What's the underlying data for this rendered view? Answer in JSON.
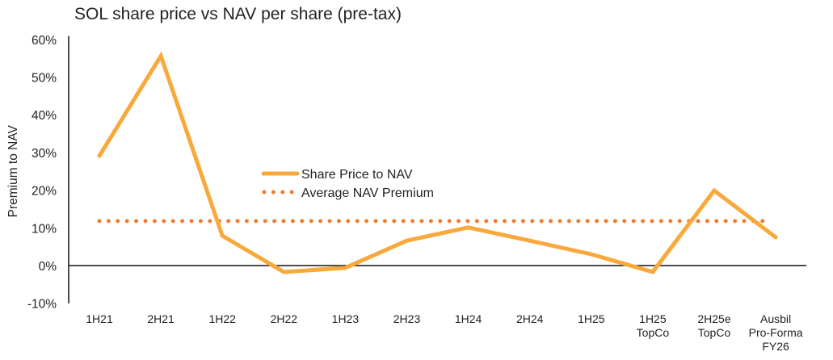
{
  "chart_data": {
    "type": "line",
    "title": "SOL share price vs NAV per share (pre-tax)",
    "xlabel": "",
    "ylabel": "Premium to NAV",
    "ylim": [
      -10,
      60
    ],
    "yticks": [
      "-10%",
      "0%",
      "10%",
      "20%",
      "30%",
      "40%",
      "50%",
      "60%"
    ],
    "ytick_values": [
      -10,
      0,
      10,
      20,
      30,
      40,
      50,
      60
    ],
    "categories": [
      [
        "1H21"
      ],
      [
        "2H21"
      ],
      [
        "1H22"
      ],
      [
        "2H22"
      ],
      [
        "1H23"
      ],
      [
        "2H23"
      ],
      [
        "1H24"
      ],
      [
        "2H24"
      ],
      [
        "1H25"
      ],
      [
        "1H25",
        "TopCo"
      ],
      [
        "2H25e",
        "TopCo"
      ],
      [
        "Ausbil",
        "Pro-Forma",
        "FY26"
      ]
    ],
    "series": [
      {
        "name": "Share Price to NAV",
        "style": "solid",
        "color": "#F9A93B",
        "values": [
          29.1,
          55.6,
          7.9,
          -1.7,
          -0.6,
          6.6,
          10.1,
          6.6,
          3.0,
          -1.7,
          19.9,
          7.5
        ]
      },
      {
        "name": "Average NAV Premium",
        "style": "dotted",
        "color": "#EE7D31",
        "values": [
          11.8,
          11.8,
          11.8,
          11.8,
          11.8,
          11.8,
          11.8,
          11.8,
          11.8,
          11.8,
          11.8,
          11.8
        ]
      }
    ],
    "grid": false,
    "legend_position": "center"
  }
}
